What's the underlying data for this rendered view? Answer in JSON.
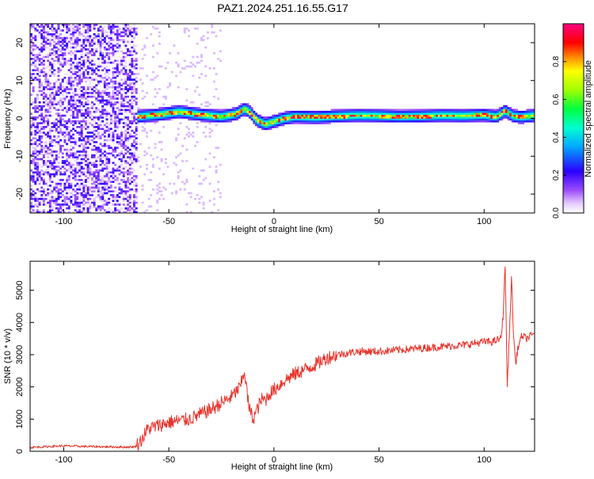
{
  "title": "PAZ1.2024.251.16.55.G17",
  "colors": {
    "snr_line": "#e8342c",
    "axis": "#000000",
    "background": "#ffffff"
  },
  "chart_data": [
    {
      "type": "heatmap",
      "xlabel": "Height of straight line (km)",
      "ylabel": "Frequency (Hz)",
      "xlim": [
        -116,
        124
      ],
      "ylim": [
        -25,
        25
      ],
      "x_ticks": [
        -100,
        -50,
        0,
        50,
        100
      ],
      "y_ticks": [
        -20,
        -10,
        0,
        10,
        20
      ],
      "grid": false,
      "colorbar": {
        "label": "Normalized spectral amplitude",
        "range": [
          0,
          1
        ],
        "ticks": [
          0.0,
          0.2,
          0.4,
          0.6,
          0.8
        ],
        "colormap": "rainbow (white/violet low to magenta high)"
      },
      "noise_region": {
        "x_range": [
          -116,
          -65
        ],
        "freq_range": [
          -25,
          25
        ],
        "level": "0.0-0.3"
      },
      "sparse_noise": {
        "x_range": [
          -65,
          -25
        ],
        "freq_range": [
          -25,
          25
        ],
        "level": "0.0-0.1"
      },
      "signal_band": {
        "x": [
          -65,
          -55,
          -45,
          -35,
          -25,
          -18,
          -14,
          -12,
          -8,
          -4,
          0,
          5,
          10,
          20,
          30,
          40,
          50,
          60,
          70,
          80,
          90,
          100,
          106,
          110,
          114,
          118,
          124
        ],
        "freq_center": [
          0.5,
          1.0,
          1.8,
          1.0,
          0.5,
          1.2,
          2.5,
          2.0,
          -0.5,
          -1.5,
          -0.8,
          0.0,
          0.5,
          0.3,
          0.6,
          0.8,
          0.7,
          0.5,
          0.6,
          0.8,
          0.7,
          0.9,
          0.5,
          2.0,
          0.6,
          0.4,
          0.8
        ],
        "bandwidth_hz": 3.5,
        "peak_level": 1.0
      }
    },
    {
      "type": "line",
      "xlabel": "Height of straight line (km)",
      "ylabel": "SNR (10 * v/v)",
      "xlim": [
        -116,
        124
      ],
      "ylim": [
        0,
        5900
      ],
      "x_ticks": [
        -100,
        -50,
        0,
        50,
        100
      ],
      "y_ticks": [
        0,
        1000,
        2000,
        3000,
        4000,
        5000
      ],
      "grid": false,
      "series": [
        {
          "x": [
            -116,
            -100,
            -90,
            -80,
            -70,
            -66,
            -63,
            -60,
            -55,
            -50,
            -45,
            -40,
            -35,
            -30,
            -25,
            -20,
            -16,
            -14,
            -12,
            -10,
            -8,
            -6,
            -4,
            -2,
            0,
            5,
            10,
            15,
            20,
            25,
            30,
            40,
            50,
            60,
            70,
            80,
            90,
            95,
            100,
            104,
            106,
            108,
            109,
            110,
            111,
            112,
            113,
            114,
            115,
            116,
            118,
            120,
            124
          ],
          "values": [
            120,
            170,
            150,
            140,
            130,
            140,
            350,
            700,
            800,
            900,
            950,
            1000,
            1150,
            1300,
            1500,
            1700,
            2000,
            2500,
            1400,
            1000,
            1300,
            1600,
            1600,
            1800,
            1900,
            2200,
            2400,
            2550,
            2700,
            2900,
            3000,
            3100,
            3100,
            3150,
            3200,
            3250,
            3300,
            3350,
            3400,
            3400,
            3450,
            3500,
            4200,
            5800,
            2000,
            3600,
            5400,
            3600,
            2700,
            3200,
            3600,
            3500,
            3650
          ]
        }
      ]
    }
  ]
}
